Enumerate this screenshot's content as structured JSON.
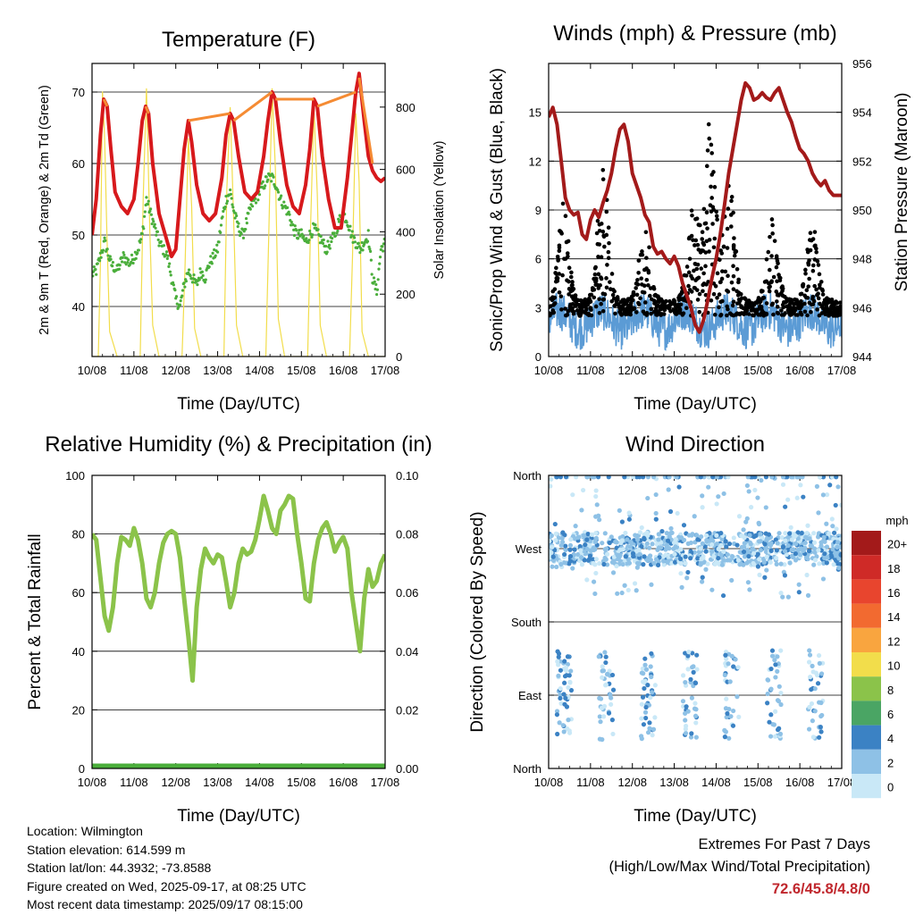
{
  "info": {
    "location": "Location: Wilmington",
    "elevation": "Station elevation: 614.599 m",
    "latlon": "Station lat/lon: 44.3932; -73.8588",
    "created": "Figure created on Wed, 2025-09-17, at 08:25 UTC",
    "recent": "Most recent data timestamp: 2025/09/17 08:15:00"
  },
  "extremes": {
    "heading": "Extremes For Past 7 Days",
    "subheading": "(High/Low/Max Wind/Total Precipitation)",
    "values": "72.6/45.8/4.8/0"
  },
  "chart_data": [
    {
      "type": "line",
      "title": "Temperature (F)",
      "xlabel": "Time (Day/UTC)",
      "ylabel": "2m & 9m T (Red, Orange) & 2m Td (Green)",
      "y2label": "Solar Insolation (Yellow)",
      "x_ticks": [
        "10/08",
        "11/08",
        "12/08",
        "13/08",
        "14/08",
        "15/08",
        "16/08",
        "17/08"
      ],
      "xlim": [
        0,
        7
      ],
      "ylim": [
        33,
        74
      ],
      "y_ticks": [
        40,
        50,
        60,
        70
      ],
      "y2lim": [
        0,
        940
      ],
      "y2_ticks": [
        0,
        200,
        400,
        600,
        800
      ],
      "grid": true,
      "series": [
        {
          "color": "#d7191c",
          "axis": "left",
          "x": [
            0,
            0.1,
            0.2,
            0.28,
            0.36,
            0.45,
            0.55,
            0.7,
            0.85,
            1.0,
            1.1,
            1.2,
            1.28,
            1.35,
            1.45,
            1.6,
            1.75,
            1.9,
            2.0,
            2.1,
            2.2,
            2.3,
            2.38,
            2.5,
            2.65,
            2.8,
            2.95,
            3.1,
            3.2,
            3.3,
            3.38,
            3.5,
            3.65,
            3.8,
            3.95,
            4.1,
            4.2,
            4.3,
            4.38,
            4.5,
            4.65,
            4.8,
            4.95,
            5.1,
            5.2,
            5.3,
            5.38,
            5.5,
            5.65,
            5.8,
            5.95,
            6.1,
            6.2,
            6.3,
            6.38,
            6.5,
            6.6,
            6.7,
            6.8,
            6.9,
            7.0
          ],
          "values": [
            50,
            55,
            64,
            69,
            68,
            62,
            56,
            54,
            53,
            55,
            60,
            66,
            68,
            67,
            60,
            53,
            50,
            47,
            48,
            55,
            62,
            66,
            63,
            57,
            53,
            52,
            53,
            58,
            64,
            67,
            66,
            61,
            56,
            55,
            56,
            61,
            66,
            70,
            69,
            63,
            57,
            54,
            53,
            57,
            62,
            69,
            68,
            61,
            55,
            51,
            51,
            58,
            64,
            70,
            72.6,
            66,
            61,
            59,
            58,
            57.5,
            58
          ]
        },
        {
          "color": "#f58b33",
          "axis": "left",
          "x": [
            0.28,
            0.36,
            1.28,
            1.35,
            2.3,
            3.3,
            3.38,
            4.3,
            4.38,
            5.3,
            5.38,
            6.3,
            6.38,
            6.7,
            6.8
          ],
          "values": [
            69,
            68,
            68,
            67,
            66,
            67,
            66,
            70,
            69,
            69,
            68,
            70,
            72,
            60,
            59
          ]
        },
        {
          "color": "#4aae3b",
          "axis": "left",
          "x": [
            0,
            0.1,
            0.2,
            0.3,
            0.45,
            0.6,
            0.75,
            0.9,
            1.0,
            1.1,
            1.2,
            1.3,
            1.4,
            1.5,
            1.6,
            1.7,
            1.8,
            1.9,
            2.0,
            2.1,
            2.2,
            2.3,
            2.4,
            2.5,
            2.6,
            2.7,
            2.8,
            2.9,
            3.0,
            3.1,
            3.2,
            3.3,
            3.4,
            3.5,
            3.6,
            3.7,
            3.8,
            3.9,
            4.0,
            4.1,
            4.2,
            4.3,
            4.4,
            4.5,
            4.6,
            4.7,
            4.8,
            4.9,
            5.0,
            5.1,
            5.2,
            5.3,
            5.4,
            5.5,
            5.6,
            5.7,
            5.8,
            5.9,
            6.0,
            6.1,
            6.2,
            6.3,
            6.4,
            6.5,
            6.6,
            6.7,
            6.8,
            6.9,
            7.0
          ],
          "values": [
            44.5,
            45,
            47,
            49,
            46,
            45,
            47,
            46,
            47,
            48,
            50,
            55,
            53,
            51,
            49,
            48,
            47,
            44,
            41,
            40,
            43,
            45,
            44,
            43,
            45,
            44,
            46,
            47,
            48,
            52,
            55,
            56,
            53,
            51,
            50,
            52,
            54,
            55,
            56,
            57,
            58,
            58,
            57,
            55,
            54,
            53,
            51,
            50,
            50,
            49,
            50,
            51,
            50,
            49,
            48,
            49,
            50,
            52,
            53,
            52,
            50,
            49,
            48,
            49,
            50,
            44,
            42,
            48,
            49
          ]
        },
        {
          "color": "#f2dd4b",
          "axis": "right",
          "x": [
            0,
            0.15,
            0.2,
            0.25,
            0.3,
            0.35,
            0.42,
            0.6,
            1.0,
            1.15,
            1.22,
            1.3,
            1.38,
            1.45,
            1.6,
            2.0,
            2.15,
            2.22,
            2.3,
            2.38,
            2.45,
            2.6,
            3.0,
            3.15,
            3.22,
            3.3,
            3.38,
            3.45,
            3.6,
            4.0,
            4.15,
            4.22,
            4.3,
            4.38,
            4.45,
            4.6,
            5.0,
            5.15,
            5.22,
            5.3,
            5.38,
            5.45,
            5.6,
            6.0,
            6.15,
            6.22,
            6.3,
            6.38,
            6.45,
            6.6,
            7.0
          ],
          "values": [
            0,
            0,
            300,
            850,
            700,
            420,
            80,
            0,
            0,
            0,
            500,
            860,
            400,
            100,
            0,
            0,
            0,
            280,
            700,
            480,
            90,
            0,
            0,
            0,
            540,
            800,
            450,
            100,
            0,
            0,
            0,
            380,
            860,
            600,
            120,
            0,
            0,
            0,
            420,
            800,
            520,
            100,
            0,
            0,
            0,
            320,
            780,
            560,
            80,
            0,
            0
          ]
        }
      ]
    },
    {
      "type": "scatter",
      "title": "Winds (mph) & Pressure (mb)",
      "xlabel": "Time (Day/UTC)",
      "ylabel": "Sonic/Prop Wind & Gust (Blue, Black)",
      "y2label": "Station Pressure (Maroon)",
      "x_ticks": [
        "10/08",
        "11/08",
        "12/08",
        "13/08",
        "14/08",
        "15/08",
        "16/08",
        "17/08"
      ],
      "xlim": [
        0,
        7
      ],
      "ylim": [
        0,
        18
      ],
      "y_ticks": [
        0,
        3,
        6,
        9,
        12,
        15
      ],
      "y2lim": [
        944,
        956
      ],
      "y2_ticks": [
        944,
        946,
        948,
        950,
        952,
        954,
        956
      ],
      "grid": true,
      "series": [
        {
          "color": "#a31a1a",
          "axis": "right",
          "x": [
            0,
            0.1,
            0.2,
            0.3,
            0.4,
            0.5,
            0.6,
            0.7,
            0.8,
            0.9,
            1.0,
            1.1,
            1.2,
            1.3,
            1.4,
            1.5,
            1.6,
            1.7,
            1.8,
            1.9,
            2.0,
            2.1,
            2.2,
            2.3,
            2.4,
            2.5,
            2.6,
            2.7,
            2.8,
            2.9,
            3.0,
            3.1,
            3.2,
            3.3,
            3.4,
            3.5,
            3.6,
            3.7,
            3.8,
            3.9,
            4.0,
            4.1,
            4.2,
            4.3,
            4.4,
            4.5,
            4.6,
            4.7,
            4.8,
            4.9,
            5.0,
            5.1,
            5.2,
            5.3,
            5.4,
            5.5,
            5.6,
            5.7,
            5.8,
            5.9,
            6.0,
            6.1,
            6.2,
            6.3,
            6.4,
            6.5,
            6.6,
            6.7,
            6.8,
            6.9,
            7.0
          ],
          "values": [
            953.8,
            954.2,
            953.5,
            952,
            950.5,
            950,
            949.8,
            949.9,
            949,
            948.8,
            949.6,
            950,
            949.7,
            950.3,
            950.8,
            951.5,
            952.5,
            953.3,
            953.5,
            952.8,
            951.5,
            951,
            950.5,
            949.8,
            949.5,
            948.5,
            948.2,
            948.3,
            948.0,
            947.8,
            948.1,
            947.7,
            947.0,
            946.5,
            946.0,
            945.3,
            945.0,
            945.5,
            946.3,
            947.2,
            948.0,
            949.0,
            950.2,
            951.5,
            952.5,
            953.5,
            954.5,
            955.2,
            955.0,
            954.5,
            954.6,
            954.8,
            954.6,
            954.5,
            954.8,
            955.0,
            954.5,
            954.0,
            953.6,
            953.0,
            952.5,
            952.3,
            952.0,
            951.5,
            951.2,
            951.0,
            951.2,
            950.8,
            950.6,
            950.6,
            950.6
          ]
        }
      ]
    },
    {
      "type": "line",
      "title": "Relative Humidity (%) & Precipitation (in)",
      "xlabel": "Time (Day/UTC)",
      "ylabel": "Percent & Total Rainfall",
      "x_ticks": [
        "10/08",
        "11/08",
        "12/08",
        "13/08",
        "14/08",
        "15/08",
        "16/08",
        "17/08"
      ],
      "xlim": [
        0,
        7
      ],
      "ylim": [
        0,
        100
      ],
      "y_ticks": [
        0,
        20,
        40,
        60,
        80,
        100
      ],
      "y2lim": [
        0,
        0.1
      ],
      "y2_ticks": [
        "0.00",
        "0.02",
        "0.04",
        "0.06",
        "0.08",
        "0.10"
      ],
      "grid": true,
      "series": [
        {
          "color": "#8bc34a",
          "axis": "left",
          "x": [
            0,
            0.1,
            0.2,
            0.3,
            0.4,
            0.5,
            0.6,
            0.7,
            0.8,
            0.9,
            1.0,
            1.1,
            1.2,
            1.3,
            1.4,
            1.5,
            1.6,
            1.7,
            1.8,
            1.9,
            2.0,
            2.1,
            2.2,
            2.3,
            2.4,
            2.5,
            2.6,
            2.7,
            2.8,
            2.9,
            3.0,
            3.1,
            3.2,
            3.3,
            3.4,
            3.5,
            3.6,
            3.7,
            3.8,
            3.9,
            4.0,
            4.1,
            4.2,
            4.3,
            4.4,
            4.5,
            4.6,
            4.7,
            4.8,
            4.9,
            5.0,
            5.1,
            5.2,
            5.3,
            5.4,
            5.5,
            5.6,
            5.7,
            5.8,
            5.9,
            6.0,
            6.1,
            6.2,
            6.3,
            6.4,
            6.5,
            6.6,
            6.7,
            6.8,
            6.9,
            7.0
          ],
          "values": [
            80,
            78,
            65,
            52,
            47,
            55,
            70,
            79,
            78,
            76,
            82,
            78,
            70,
            58,
            55,
            60,
            70,
            77,
            80,
            81,
            80,
            72,
            58,
            45,
            30,
            55,
            68,
            75,
            72,
            70,
            73,
            72,
            64,
            55,
            60,
            70,
            75,
            73,
            74,
            78,
            85,
            93,
            88,
            82,
            80,
            88,
            90,
            93,
            92,
            80,
            70,
            58,
            57,
            70,
            78,
            82,
            84,
            80,
            74,
            77,
            79,
            75,
            60,
            50,
            40,
            58,
            68,
            62,
            64,
            70,
            73
          ]
        }
      ]
    },
    {
      "type": "scatter",
      "title": "Wind Direction",
      "xlabel": "Time (Day/UTC)",
      "ylabel": "Direction (Colored By Speed)",
      "x_ticks": [
        "10/08",
        "11/08",
        "12/08",
        "13/08",
        "14/08",
        "15/08",
        "16/08",
        "17/08"
      ],
      "xlim": [
        0,
        7
      ],
      "y_ticks": [
        "North",
        "East",
        "South",
        "West",
        "North"
      ],
      "grid": true,
      "legend": {
        "title": "mph",
        "labels": [
          "20+",
          "18",
          "16",
          "14",
          "12",
          "10",
          "8",
          "6",
          "4",
          "2",
          "0"
        ],
        "colors": [
          "#a31a1a",
          "#cf2a27",
          "#e8452e",
          "#f26a30",
          "#f9a53f",
          "#f2dd4b",
          "#8bc34a",
          "#4aa564",
          "#3b82c4",
          "#8ec1e6",
          "#c9e8f7"
        ]
      }
    }
  ]
}
